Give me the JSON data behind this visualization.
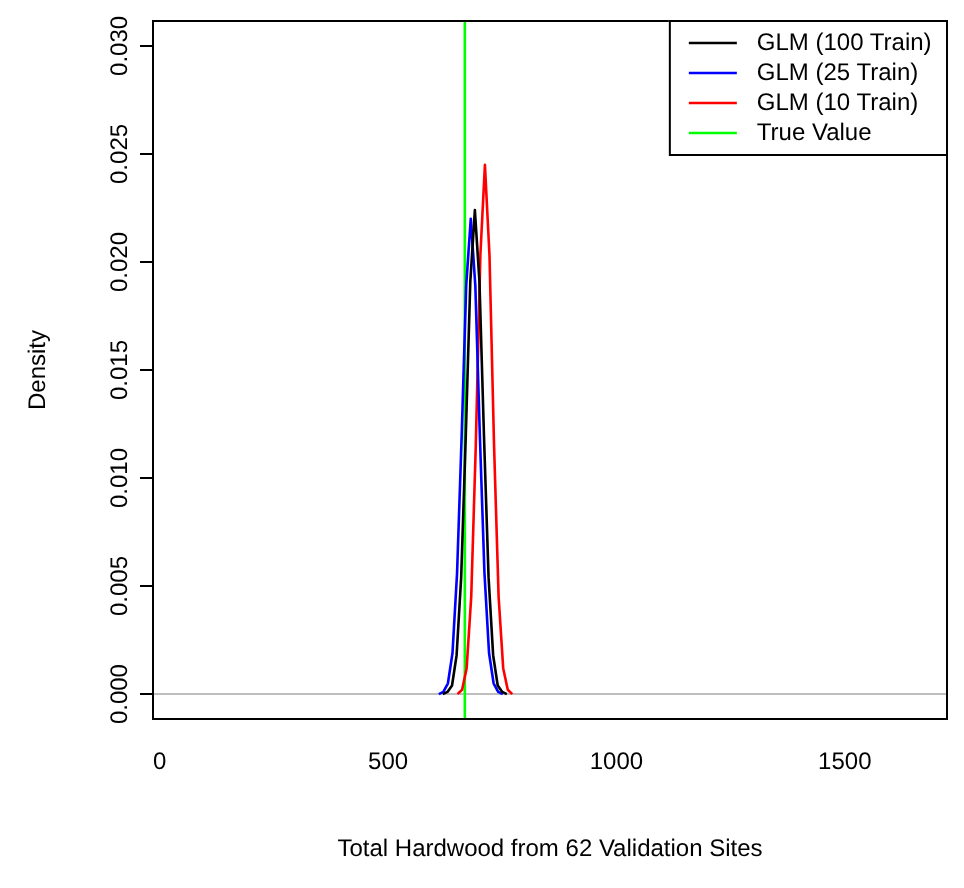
{
  "chart_data": {
    "type": "line",
    "xlabel": "Total Hardwood from 62 Validation Sites",
    "ylabel": "Density",
    "xlim": [
      -17,
      1726
    ],
    "ylim": [
      -0.0012,
      0.0312
    ],
    "xticks": [
      0,
      500,
      1000,
      1500
    ],
    "yticks": [
      {
        "value": 0,
        "label": "0.000"
      },
      {
        "value": 0.005,
        "label": "0.005"
      },
      {
        "value": 0.01,
        "label": "0.010"
      },
      {
        "value": 0.015,
        "label": "0.015"
      },
      {
        "value": 0.02,
        "label": "0.020"
      },
      {
        "value": 0.025,
        "label": "0.025"
      },
      {
        "value": 0.03,
        "label": "0.030"
      }
    ],
    "grid": false,
    "legend": "top right",
    "marker": "none",
    "line_style": "solid",
    "ref_lines": [
      {
        "axis": "y",
        "value": 0,
        "color": "#bebebe"
      }
    ],
    "series": [
      {
        "name": "GLM (100 Train)",
        "color": "#000000",
        "x": [
          620,
          630,
          640,
          650,
          660,
          670,
          680,
          690,
          700,
          710,
          720,
          730,
          740,
          750,
          760
        ],
        "values": [
          0,
          0.0001,
          0.0004,
          0.0018,
          0.0054,
          0.0119,
          0.0191,
          0.0224,
          0.0191,
          0.0119,
          0.0054,
          0.0018,
          0.0004,
          0.0001,
          0
        ]
      },
      {
        "name": "GLM (25 Train)",
        "color": "#0000ff",
        "x": [
          611,
          621,
          631,
          641,
          651,
          661,
          671,
          681,
          691,
          701,
          711,
          721,
          731,
          741,
          751
        ],
        "values": [
          0,
          0.0001,
          0.0005,
          0.0019,
          0.0056,
          0.0119,
          0.0189,
          0.022,
          0.0189,
          0.0119,
          0.0056,
          0.0019,
          0.0005,
          0.0001,
          0
        ]
      },
      {
        "name": "GLM (10 Train)",
        "color": "#ff0000",
        "x": [
          652,
          662,
          672,
          682,
          692,
          702,
          712,
          722,
          732,
          742,
          752,
          762,
          772
        ],
        "values": [
          0,
          0.0002,
          0.0012,
          0.0045,
          0.0115,
          0.0203,
          0.0245,
          0.0203,
          0.0115,
          0.0045,
          0.0012,
          0.0002,
          0
        ]
      },
      {
        "name": "True Value",
        "color": "#00ff00",
        "x": [
          668,
          668
        ],
        "values": [
          -0.0012,
          0.0312
        ]
      }
    ]
  }
}
